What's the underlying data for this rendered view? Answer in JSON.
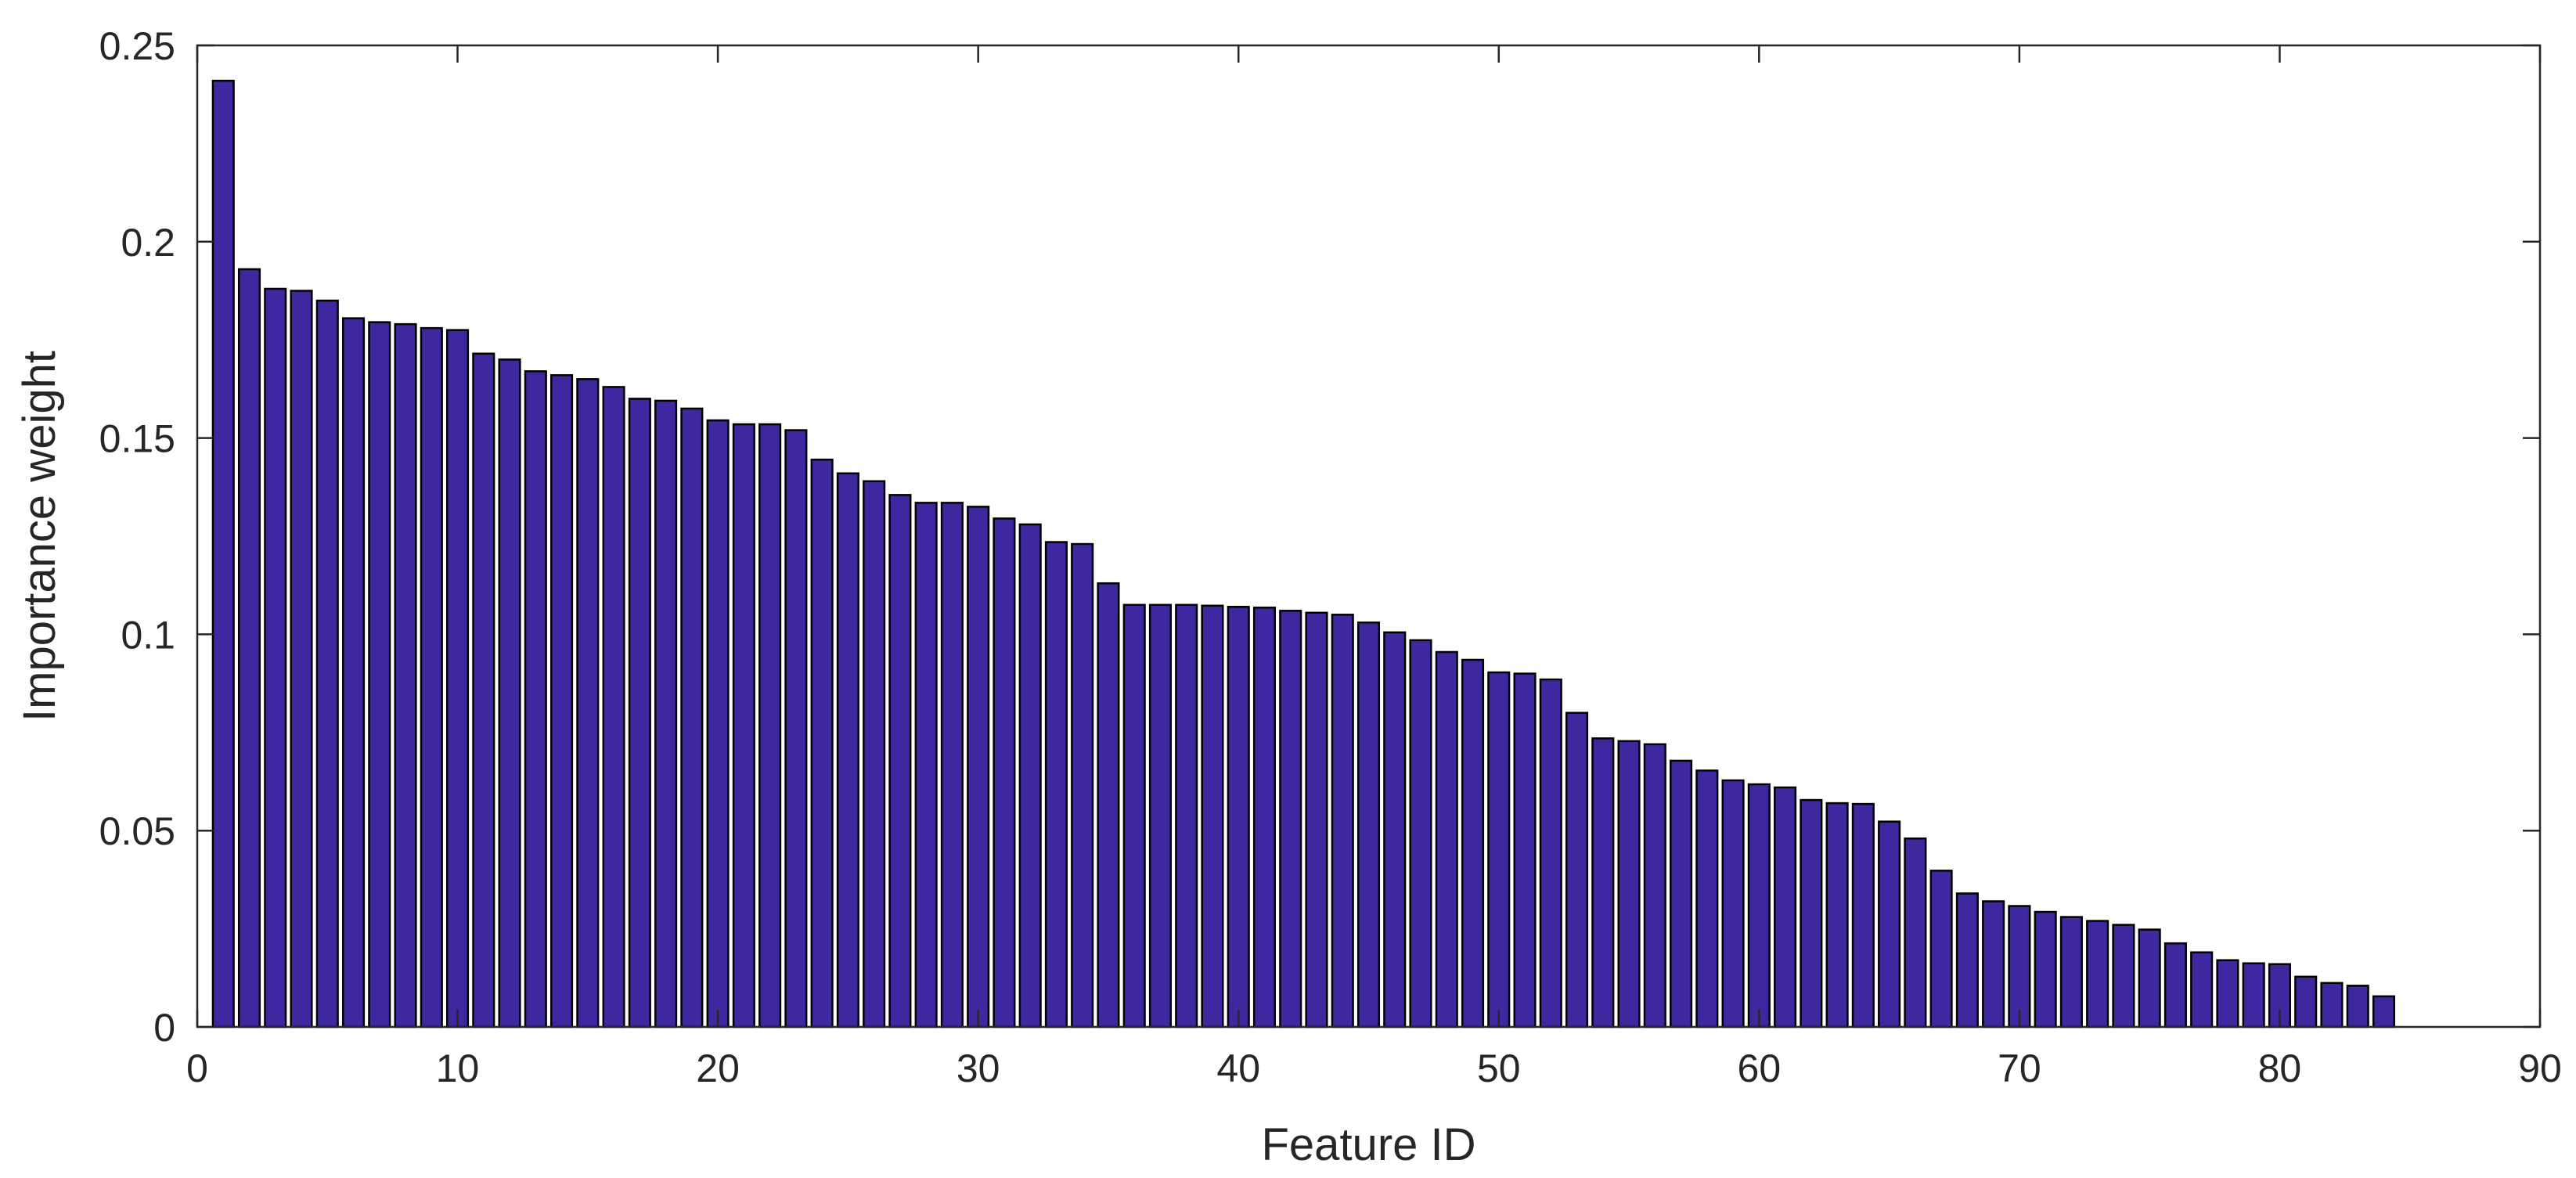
{
  "chart_data": {
    "type": "bar",
    "xlabel": "Feature ID",
    "ylabel": "Importance weight",
    "xlim": [
      0,
      90
    ],
    "ylim": [
      0,
      0.25
    ],
    "xticks": [
      0,
      10,
      20,
      30,
      40,
      50,
      60,
      70,
      80,
      90
    ],
    "yticks": [
      0,
      0.05,
      0.1,
      0.15,
      0.2,
      0.25
    ],
    "xtick_labels": [
      "0",
      "10",
      "20",
      "30",
      "40",
      "50",
      "60",
      "70",
      "80",
      "90"
    ],
    "ytick_labels": [
      "0",
      "0.05",
      "0.1",
      "0.15",
      "0.2",
      "0.25"
    ],
    "grid": false,
    "bar_color": "#3f27a0",
    "x": [
      1,
      2,
      3,
      4,
      5,
      6,
      7,
      8,
      9,
      10,
      11,
      12,
      13,
      14,
      15,
      16,
      17,
      18,
      19,
      20,
      21,
      22,
      23,
      24,
      25,
      26,
      27,
      28,
      29,
      30,
      31,
      32,
      33,
      34,
      35,
      36,
      37,
      38,
      39,
      40,
      41,
      42,
      43,
      44,
      45,
      46,
      47,
      48,
      49,
      50,
      51,
      52,
      53,
      54,
      55,
      56,
      57,
      58,
      59,
      60,
      61,
      62,
      63,
      64,
      65,
      66,
      67,
      68,
      69,
      70,
      71,
      72,
      73,
      74,
      75,
      76,
      77,
      78,
      79,
      80,
      81,
      82,
      83,
      84
    ],
    "values": [
      0.241,
      0.193,
      0.188,
      0.1875,
      0.185,
      0.1805,
      0.1795,
      0.179,
      0.178,
      0.1775,
      0.1715,
      0.17,
      0.167,
      0.166,
      0.165,
      0.163,
      0.16,
      0.1595,
      0.1575,
      0.1545,
      0.1535,
      0.1535,
      0.152,
      0.1445,
      0.141,
      0.139,
      0.1355,
      0.1335,
      0.1335,
      0.1325,
      0.1295,
      0.128,
      0.1235,
      0.123,
      0.113,
      0.1075,
      0.1075,
      0.1075,
      0.1073,
      0.107,
      0.1068,
      0.106,
      0.1055,
      0.105,
      0.103,
      0.1005,
      0.0985,
      0.0955,
      0.0935,
      0.0903,
      0.09,
      0.0885,
      0.08,
      0.0735,
      0.0728,
      0.072,
      0.0678,
      0.0653,
      0.0628,
      0.0618,
      0.061,
      0.0578,
      0.057,
      0.0568,
      0.0523,
      0.048,
      0.0398,
      0.034,
      0.032,
      0.0308,
      0.0293,
      0.028,
      0.027,
      0.026,
      0.0248,
      0.0213,
      0.019,
      0.017,
      0.0162,
      0.016,
      0.0128,
      0.0112,
      0.0105,
      0.0078
    ]
  }
}
